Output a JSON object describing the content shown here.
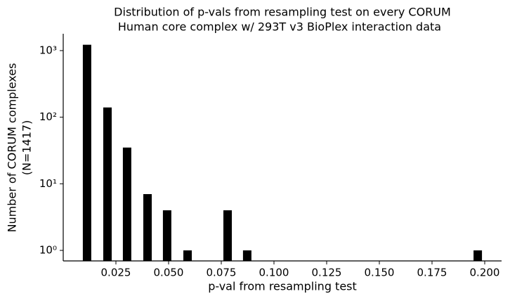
{
  "chart_data": {
    "type": "bar",
    "title": [
      "Distribution of p-vals from resampling test on every CORUM",
      "Human core complex w/ 293T v3 BioPlex interaction data"
    ],
    "x_label": "p-val from resampling test",
    "y_label": [
      "Number of CORUM complexes",
      "(N=1417)"
    ],
    "x": [
      0.0113,
      0.021,
      0.0303,
      0.04,
      0.0493,
      0.059,
      0.078,
      0.0873,
      0.1967
    ],
    "values": [
      1224,
      140,
      35,
      7,
      4,
      1,
      4,
      1,
      1
    ],
    "color": "#000000",
    "xlim": [
      0.0,
      0.208
    ],
    "xticks": [
      0.025,
      {
        "value": 0.05,
        "label": "0.050"
      },
      0.075,
      {
        "value": 0.1,
        "label": "0.100"
      },
      0.125,
      {
        "value": 0.15,
        "label": "0.150"
      },
      0.175,
      {
        "value": 0.2,
        "label": "0.200"
      }
    ],
    "ylim": [
      0.695,
      1790
    ],
    "yticks": [
      {
        "value": 1,
        "label": "10⁰"
      },
      {
        "value": 10,
        "label": "10¹"
      },
      {
        "value": 100,
        "label": "10²"
      },
      {
        "value": 1000,
        "label": "10³"
      }
    ],
    "y_scale": "log",
    "grid": false
  }
}
